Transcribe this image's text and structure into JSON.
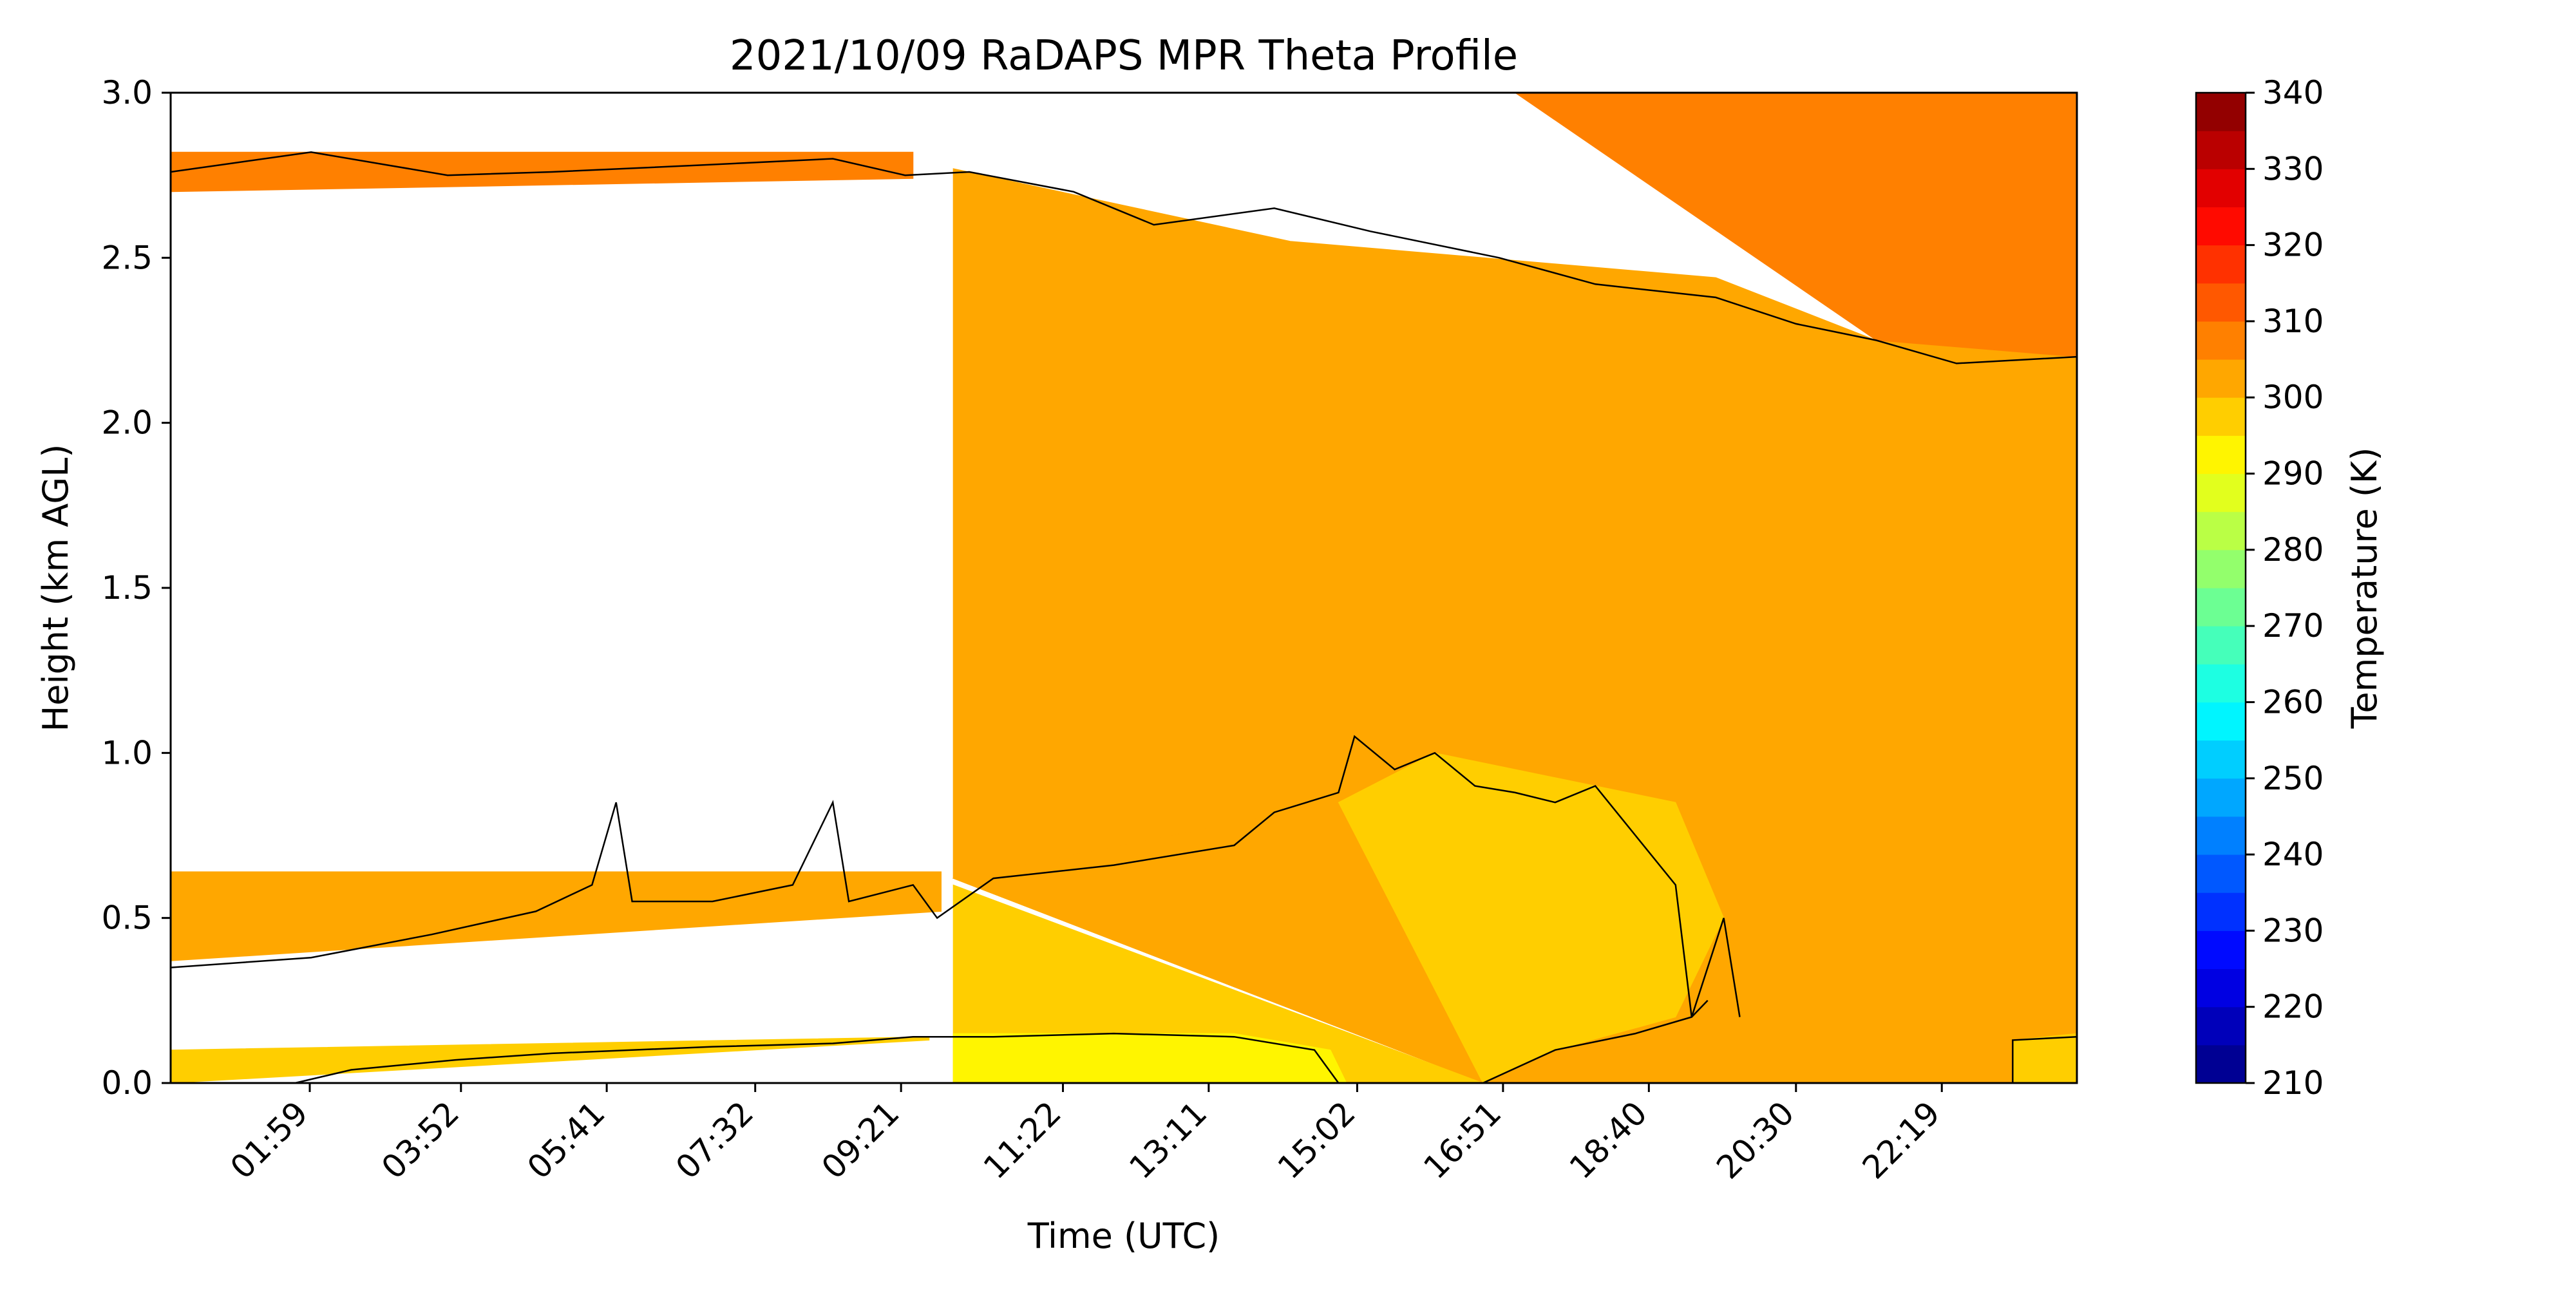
{
  "chart_data": {
    "type": "heatmap",
    "title": "2021/10/09 RaDAPS MPR Theta Profile",
    "xlabel": "Time (UTC)",
    "ylabel": "Height (km AGL)",
    "x_tick_labels": [
      "01:59",
      "03:52",
      "05:41",
      "07:32",
      "09:21",
      "11:22",
      "13:11",
      "15:02",
      "16:51",
      "18:40",
      "20:30",
      "22:19"
    ],
    "x_tick_hours": [
      1.983,
      3.867,
      5.683,
      7.533,
      9.35,
      11.367,
      13.183,
      15.033,
      16.85,
      18.667,
      20.5,
      22.317
    ],
    "xlim_hours": [
      0.25,
      24.0
    ],
    "ylim": [
      0,
      3
    ],
    "y_ticks": [
      0.0,
      0.5,
      1.0,
      1.5,
      2.0,
      2.5,
      3.0
    ],
    "y_tick_labels": [
      "0.0",
      "0.5",
      "1.0",
      "1.5",
      "2.0",
      "2.5",
      "3.0"
    ],
    "colorbar": {
      "label": "Temperature (K)",
      "range": [
        210,
        340
      ],
      "step": 5,
      "ticks": [
        210,
        220,
        230,
        240,
        250,
        260,
        270,
        280,
        290,
        300,
        310,
        320,
        330,
        340
      ],
      "tick_labels": [
        "210",
        "220",
        "230",
        "240",
        "250",
        "260",
        "270",
        "280",
        "290",
        "300",
        "310",
        "320",
        "330",
        "340"
      ],
      "colormap": "jet"
    },
    "regions": [
      {
        "name": "upper-left-band",
        "theta_K": 307.5,
        "polygon": [
          [
            0.25,
            2.7
          ],
          [
            9.5,
            2.74
          ],
          [
            9.5,
            2.82
          ],
          [
            0.25,
            2.82
          ]
        ]
      },
      {
        "name": "mid-left-band",
        "theta_K": 302.5,
        "polygon": [
          [
            0.25,
            0.64
          ],
          [
            9.85,
            0.64
          ],
          [
            9.85,
            0.52
          ],
          [
            0.25,
            0.37
          ]
        ]
      },
      {
        "name": "low-left-band",
        "theta_K": 297.5,
        "polygon": [
          [
            0.25,
            0.1
          ],
          [
            9.7,
            0.14
          ],
          [
            9.7,
            0.13
          ],
          [
            0.25,
            0.0
          ]
        ]
      },
      {
        "name": "right-main",
        "theta_K": 302.5,
        "polygon": [
          [
            10.0,
            2.77
          ],
          [
            14.2,
            2.55
          ],
          [
            19.5,
            2.44
          ],
          [
            21.5,
            2.25
          ],
          [
            24.0,
            2.2
          ],
          [
            24.0,
            0.0
          ],
          [
            16.6,
            0.0
          ],
          [
            10.0,
            0.62
          ]
        ]
      },
      {
        "name": "upper-right-wedge",
        "theta_K": 307.5,
        "polygon": [
          [
            17.0,
            3.0
          ],
          [
            24.0,
            3.0
          ],
          [
            24.0,
            2.2
          ],
          [
            21.5,
            2.25
          ]
        ]
      },
      {
        "name": "mid-wedge",
        "theta_K": 302.5,
        "polygon": [
          [
            10.0,
            0.62
          ],
          [
            14.8,
            0.85
          ],
          [
            16.6,
            0.0
          ]
        ]
      },
      {
        "name": "lower-center-region",
        "theta_K": 297.5,
        "polygon": [
          [
            10.0,
            0.6
          ],
          [
            10.0,
            0.0
          ],
          [
            16.6,
            0.0
          ]
        ]
      },
      {
        "name": "daytime-mixed-region",
        "theta_K": 297.5,
        "polygon": [
          [
            14.8,
            0.85
          ],
          [
            16.6,
            0.0
          ],
          [
            17.5,
            0.1
          ],
          [
            19.0,
            0.2
          ],
          [
            19.6,
            0.5
          ],
          [
            19.0,
            0.85
          ],
          [
            16.0,
            1.0
          ]
        ]
      },
      {
        "name": "surface-warm-patch",
        "theta_K": 292.5,
        "polygon": [
          [
            10.0,
            0.0
          ],
          [
            10.0,
            0.15
          ],
          [
            13.5,
            0.15
          ],
          [
            14.7,
            0.1
          ],
          [
            14.9,
            0.0
          ]
        ]
      },
      {
        "name": "late-surface-patch",
        "theta_K": 297.5,
        "polygon": [
          [
            23.2,
            0.0
          ],
          [
            23.2,
            0.13
          ],
          [
            24.0,
            0.15
          ],
          [
            24.0,
            0.0
          ]
        ]
      }
    ],
    "contour_lines": [
      {
        "name": "upper-isentrope",
        "points": [
          [
            0.25,
            2.76
          ],
          [
            2.0,
            2.82
          ],
          [
            3.7,
            2.75
          ],
          [
            5.0,
            2.76
          ],
          [
            6.8,
            2.78
          ],
          [
            8.5,
            2.8
          ],
          [
            9.4,
            2.75
          ],
          [
            10.2,
            2.76
          ],
          [
            11.5,
            2.7
          ],
          [
            12.5,
            2.6
          ],
          [
            14.0,
            2.65
          ],
          [
            15.2,
            2.58
          ],
          [
            16.8,
            2.5
          ],
          [
            18.0,
            2.42
          ],
          [
            19.5,
            2.38
          ],
          [
            20.5,
            2.3
          ],
          [
            21.5,
            2.25
          ],
          [
            22.5,
            2.18
          ],
          [
            24.0,
            2.2
          ]
        ]
      },
      {
        "name": "mid-isentrope",
        "points": [
          [
            0.25,
            0.35
          ],
          [
            2.0,
            0.38
          ],
          [
            3.5,
            0.45
          ],
          [
            4.8,
            0.52
          ],
          [
            5.5,
            0.6
          ],
          [
            5.8,
            0.85
          ],
          [
            6.0,
            0.55
          ],
          [
            7.0,
            0.55
          ],
          [
            8.0,
            0.6
          ],
          [
            8.5,
            0.85
          ],
          [
            8.7,
            0.55
          ],
          [
            9.5,
            0.6
          ],
          [
            9.8,
            0.5
          ],
          [
            10.5,
            0.62
          ],
          [
            12.0,
            0.66
          ],
          [
            13.5,
            0.72
          ],
          [
            14.0,
            0.82
          ],
          [
            14.8,
            0.88
          ],
          [
            15.0,
            1.05
          ],
          [
            15.5,
            0.95
          ],
          [
            16.0,
            1.0
          ],
          [
            16.5,
            0.9
          ],
          [
            17.0,
            0.88
          ],
          [
            17.5,
            0.85
          ],
          [
            18.0,
            0.9
          ],
          [
            18.5,
            0.75
          ],
          [
            19.0,
            0.6
          ],
          [
            19.2,
            0.2
          ],
          [
            19.6,
            0.5
          ],
          [
            19.8,
            0.2
          ]
        ]
      },
      {
        "name": "lower-isentrope",
        "points": [
          [
            1.8,
            0.0
          ],
          [
            2.5,
            0.04
          ],
          [
            3.8,
            0.07
          ],
          [
            5.0,
            0.09
          ],
          [
            7.0,
            0.11
          ],
          [
            8.5,
            0.12
          ],
          [
            9.5,
            0.14
          ],
          [
            10.5,
            0.14
          ],
          [
            12.0,
            0.15
          ],
          [
            13.5,
            0.14
          ],
          [
            14.5,
            0.1
          ],
          [
            14.8,
            0.0
          ]
        ]
      },
      {
        "name": "afternoon-isentrope",
        "points": [
          [
            16.6,
            0.0
          ],
          [
            17.5,
            0.1
          ],
          [
            18.5,
            0.15
          ],
          [
            19.2,
            0.2
          ],
          [
            19.4,
            0.25
          ]
        ]
      },
      {
        "name": "late-isentrope",
        "points": [
          [
            23.2,
            0.0
          ],
          [
            23.2,
            0.13
          ],
          [
            24.0,
            0.14
          ]
        ]
      }
    ]
  }
}
